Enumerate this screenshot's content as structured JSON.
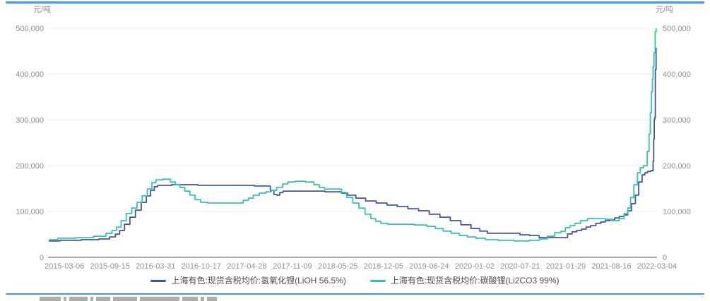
{
  "page": {
    "background": "#ffffff",
    "accent_border_color": "#3b99ee"
  },
  "chart_data": {
    "type": "line",
    "title": "",
    "unit_label": "元/吨",
    "grid": true,
    "legend_position": "bottom-center",
    "y_axis": {
      "min": 0,
      "max": 500000,
      "tick_values": [
        0,
        100000,
        200000,
        300000,
        400000,
        500000
      ],
      "tick_labels": [
        "0",
        "100,000",
        "200,000",
        "300,000",
        "400,000",
        "500,000"
      ],
      "sides": [
        "left",
        "right"
      ],
      "label_color": "#8e8e9a"
    },
    "x_axis": {
      "tick_labels": [
        "2015-03-06",
        "2015-09-15",
        "2016-03-31",
        "2016-10-17",
        "2017-04-28",
        "2017-11-09",
        "2018-05-25",
        "2018-12-05",
        "2019-06-24",
        "2020-01-02",
        "2020-07-21",
        "2021-01-29",
        "2021-08-16",
        "2022-03-04"
      ],
      "first_tick_fraction": 0.027,
      "last_tick_fraction": 1.0,
      "label_color": "#8e8e9a"
    },
    "x_encoding": "fraction across plot area (0 = left plot edge, 1 = right plot edge); ticks above give date anchors",
    "series": [
      {
        "name": "上海有色:现货含税均价:氢氧化锂(LiOH 56.5%)",
        "color": "#4253a3",
        "points": [
          [
            0.002,
            35500
          ],
          [
            0.037,
            37000
          ],
          [
            0.072,
            38500
          ],
          [
            0.095,
            40000
          ],
          [
            0.107,
            44500
          ],
          [
            0.114,
            50500
          ],
          [
            0.121,
            58500
          ],
          [
            0.13,
            72000
          ],
          [
            0.139,
            87500
          ],
          [
            0.148,
            103000
          ],
          [
            0.158,
            120000
          ],
          [
            0.165,
            134000
          ],
          [
            0.172,
            146000
          ],
          [
            0.177,
            154000
          ],
          [
            0.183,
            157000
          ],
          [
            0.223,
            158500
          ],
          [
            0.269,
            157000
          ],
          [
            0.316,
            157000
          ],
          [
            0.362,
            155500
          ],
          [
            0.368,
            146000
          ],
          [
            0.374,
            137000
          ],
          [
            0.378,
            135500
          ],
          [
            0.383,
            141500
          ],
          [
            0.389,
            144500
          ],
          [
            0.432,
            144500
          ],
          [
            0.478,
            143000
          ],
          [
            0.486,
            140000
          ],
          [
            0.498,
            135500
          ],
          [
            0.513,
            129000
          ],
          [
            0.53,
            123000
          ],
          [
            0.548,
            118500
          ],
          [
            0.565,
            114000
          ],
          [
            0.582,
            111000
          ],
          [
            0.6,
            106000
          ],
          [
            0.617,
            101500
          ],
          [
            0.635,
            94000
          ],
          [
            0.652,
            87500
          ],
          [
            0.669,
            80000
          ],
          [
            0.687,
            71000
          ],
          [
            0.702,
            63000
          ],
          [
            0.716,
            57000
          ],
          [
            0.727,
            52500
          ],
          [
            0.768,
            52500
          ],
          [
            0.782,
            49000
          ],
          [
            0.799,
            47500
          ],
          [
            0.814,
            43000
          ],
          [
            0.849,
            43000
          ],
          [
            0.857,
            51000
          ],
          [
            0.864,
            55500
          ],
          [
            0.872,
            58500
          ],
          [
            0.88,
            61500
          ],
          [
            0.887,
            66000
          ],
          [
            0.895,
            69000
          ],
          [
            0.904,
            74000
          ],
          [
            0.911,
            77000
          ],
          [
            0.919,
            80000
          ],
          [
            0.927,
            81500
          ],
          [
            0.934,
            86000
          ],
          [
            0.942,
            89000
          ],
          [
            0.95,
            92500
          ],
          [
            0.954,
            101500
          ],
          [
            0.962,
            117000
          ],
          [
            0.967,
            135500
          ],
          [
            0.973,
            164500
          ],
          [
            0.978,
            180000
          ],
          [
            0.982,
            184500
          ],
          [
            0.987,
            187500
          ],
          [
            0.993,
            189000
          ],
          [
            0.994,
            210000
          ],
          [
            0.995,
            258000
          ],
          [
            0.996,
            300000
          ],
          [
            0.9965,
            305000
          ],
          [
            0.998,
            410000
          ],
          [
            0.999,
            456000
          ]
        ]
      },
      {
        "name": "上海有色:现货含税均价:碳酸锂(Li2CO3 99%)",
        "color": "#35c3ad",
        "points": [
          [
            0.002,
            38500
          ],
          [
            0.031,
            41500
          ],
          [
            0.06,
            43000
          ],
          [
            0.089,
            46000
          ],
          [
            0.101,
            52000
          ],
          [
            0.109,
            58500
          ],
          [
            0.116,
            66000
          ],
          [
            0.124,
            80000
          ],
          [
            0.133,
            95500
          ],
          [
            0.142,
            107500
          ],
          [
            0.15,
            120000
          ],
          [
            0.159,
            134000
          ],
          [
            0.167,
            149000
          ],
          [
            0.174,
            163000
          ],
          [
            0.18,
            169000
          ],
          [
            0.197,
            170500
          ],
          [
            0.205,
            164500
          ],
          [
            0.213,
            158500
          ],
          [
            0.22,
            152500
          ],
          [
            0.229,
            144500
          ],
          [
            0.237,
            135500
          ],
          [
            0.246,
            126000
          ],
          [
            0.255,
            120000
          ],
          [
            0.269,
            118500
          ],
          [
            0.316,
            118500
          ],
          [
            0.325,
            124500
          ],
          [
            0.333,
            129000
          ],
          [
            0.341,
            135500
          ],
          [
            0.353,
            140000
          ],
          [
            0.362,
            143000
          ],
          [
            0.371,
            146000
          ],
          [
            0.38,
            152500
          ],
          [
            0.39,
            160000
          ],
          [
            0.398,
            164500
          ],
          [
            0.414,
            166000
          ],
          [
            0.432,
            164500
          ],
          [
            0.441,
            158500
          ],
          [
            0.45,
            152500
          ],
          [
            0.458,
            149000
          ],
          [
            0.478,
            149000
          ],
          [
            0.486,
            141500
          ],
          [
            0.495,
            130500
          ],
          [
            0.506,
            118500
          ],
          [
            0.515,
            107500
          ],
          [
            0.526,
            94000
          ],
          [
            0.534,
            84500
          ],
          [
            0.542,
            78500
          ],
          [
            0.551,
            74000
          ],
          [
            0.565,
            72000
          ],
          [
            0.588,
            72000
          ],
          [
            0.615,
            70500
          ],
          [
            0.629,
            67500
          ],
          [
            0.643,
            63000
          ],
          [
            0.655,
            57000
          ],
          [
            0.669,
            52500
          ],
          [
            0.682,
            47500
          ],
          [
            0.695,
            44500
          ],
          [
            0.71,
            41500
          ],
          [
            0.727,
            38500
          ],
          [
            0.751,
            37000
          ],
          [
            0.78,
            35500
          ],
          [
            0.8,
            37000
          ],
          [
            0.814,
            40000
          ],
          [
            0.826,
            46000
          ],
          [
            0.838,
            53500
          ],
          [
            0.846,
            56500
          ],
          [
            0.853,
            64500
          ],
          [
            0.861,
            69000
          ],
          [
            0.869,
            74000
          ],
          [
            0.88,
            80000
          ],
          [
            0.892,
            84500
          ],
          [
            0.911,
            84500
          ],
          [
            0.919,
            83000
          ],
          [
            0.934,
            80000
          ],
          [
            0.942,
            84500
          ],
          [
            0.95,
            95500
          ],
          [
            0.954,
            107500
          ],
          [
            0.959,
            130500
          ],
          [
            0.965,
            158500
          ],
          [
            0.971,
            184500
          ],
          [
            0.974,
            195500
          ],
          [
            0.982,
            200000
          ],
          [
            0.986,
            231000
          ],
          [
            0.988,
            269000
          ],
          [
            0.99,
            315500
          ],
          [
            0.992,
            361500
          ],
          [
            0.993,
            389000
          ],
          [
            0.994,
            415500
          ],
          [
            0.996,
            446000
          ],
          [
            0.998,
            492000
          ],
          [
            0.999,
            498000
          ]
        ]
      }
    ],
    "style": {
      "gridline_color": "#ededf2",
      "zero_axis_color": "#a9a9b5"
    }
  },
  "legend": {
    "items": [
      {
        "label": "上海有色:现货含税均价:氢氧化锂(LiOH 56.5%)"
      },
      {
        "label": "上海有色:现货含税均价:碳酸锂(Li2CO3 99%)"
      }
    ]
  }
}
